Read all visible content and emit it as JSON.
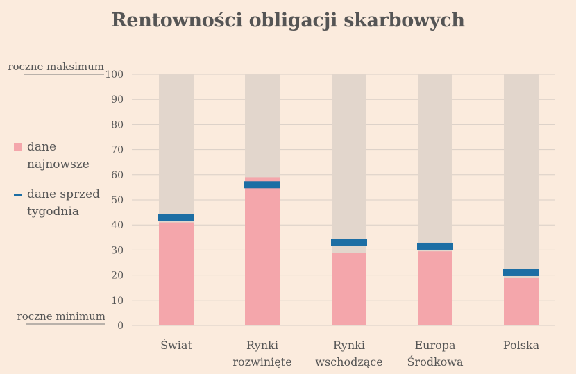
{
  "chart_data": {
    "type": "bar",
    "title": "Rentowności obligacji skarbowych",
    "categories": [
      [
        "Świat"
      ],
      [
        "Rynki",
        "rozwinięte"
      ],
      [
        "Rynki",
        "wschodzące"
      ],
      [
        "Europa",
        "Środkowa"
      ],
      [
        "Polska"
      ]
    ],
    "series": [
      {
        "name": "dane najnowsze",
        "values": [
          41,
          59,
          29,
          29.5,
          19
        ],
        "color": "#f4a6ab"
      },
      {
        "name": "dane sprzed tygodnia",
        "values": [
          43,
          56,
          33,
          31.5,
          21
        ],
        "color": "#1c6ea4"
      }
    ],
    "background_range": [
      0,
      100
    ],
    "background_color": "#e2d6cc",
    "ylim": [
      0,
      100
    ],
    "yticks": [
      0,
      10,
      20,
      30,
      40,
      50,
      60,
      70,
      80,
      90,
      100
    ],
    "ytick_labels": [
      "0",
      "10",
      "20",
      "30",
      "40",
      "50",
      "60",
      "70",
      "80",
      "90",
      "100"
    ],
    "y_top_label": "roczne maksimum",
    "y_bottom_label": "roczne minimum",
    "grid": true,
    "legend_placement": "left"
  },
  "legend": {
    "item1": [
      "dane",
      "najnowsze"
    ],
    "item2": [
      "dane sprzed",
      "tygodnia"
    ]
  }
}
